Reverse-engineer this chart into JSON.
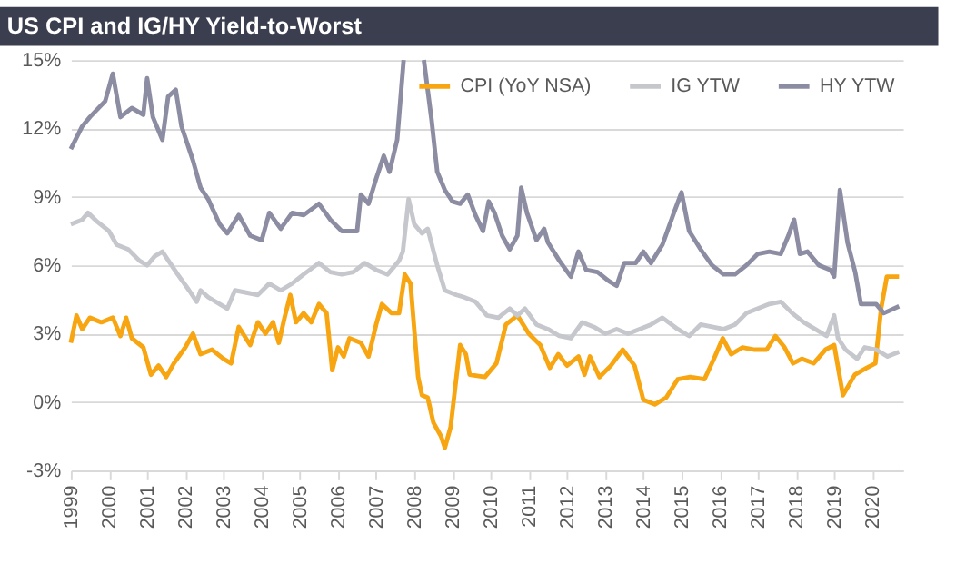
{
  "chart_data": {
    "type": "line",
    "title": "US CPI and IG/HY Yield-to-Worst",
    "xlim": [
      1999,
      2020.8
    ],
    "xticks": [
      1999,
      2000,
      2001,
      2002,
      2003,
      2004,
      2005,
      2006,
      2007,
      2008,
      2009,
      2010,
      2011,
      2012,
      2013,
      2014,
      2015,
      2016,
      2017,
      2018,
      2019,
      2020
    ],
    "ylim": [
      -3,
      15
    ],
    "yticks": [
      {
        "value": -3,
        "label": "-3%"
      },
      {
        "value": 0,
        "label": "0%"
      },
      {
        "value": 3,
        "label": "3%"
      },
      {
        "value": 6,
        "label": "6%"
      },
      {
        "value": 9,
        "label": "9%"
      },
      {
        "value": 12,
        "label": "12%"
      },
      {
        "value": 15,
        "label": "15%"
      }
    ],
    "grid": "y",
    "legend": "top right",
    "line_style": "solid",
    "marker": "none",
    "series": [
      {
        "name": "CPI (YoY NSA)",
        "color": "#f7a511",
        "x": [
          1999.0,
          1999.15,
          1999.3,
          1999.5,
          1999.8,
          2000.1,
          2000.3,
          2000.45,
          2000.6,
          2000.9,
          2001.1,
          2001.3,
          2001.5,
          2001.7,
          2002.0,
          2002.2,
          2002.4,
          2002.7,
          2003.0,
          2003.2,
          2003.4,
          2003.7,
          2003.9,
          2004.1,
          2004.3,
          2004.45,
          2004.6,
          2004.75,
          2004.9,
          2005.1,
          2005.3,
          2005.5,
          2005.7,
          2005.85,
          2006.0,
          2006.15,
          2006.3,
          2006.6,
          2006.8,
          2007.0,
          2007.15,
          2007.4,
          2007.6,
          2007.75,
          2007.9,
          2008.1,
          2008.2,
          2008.35,
          2008.5,
          2008.7,
          2008.8,
          2008.95,
          2009.2,
          2009.35,
          2009.45,
          2009.85,
          2010.15,
          2010.4,
          2010.7,
          2011.0,
          2011.3,
          2011.55,
          2011.77,
          2012.0,
          2012.3,
          2012.46,
          2012.6,
          2012.85,
          2013.15,
          2013.46,
          2013.77,
          2014.0,
          2014.3,
          2014.6,
          2014.9,
          2015.23,
          2015.6,
          2015.85,
          2016.08,
          2016.3,
          2016.6,
          2016.92,
          2017.23,
          2017.46,
          2017.7,
          2017.92,
          2018.15,
          2018.46,
          2018.77,
          2019.0,
          2019.23,
          2019.54,
          2019.85,
          2020.08,
          2020.23,
          2020.38,
          2020.7
        ],
        "values": [
          2.6,
          3.8,
          3.2,
          3.7,
          3.5,
          3.7,
          2.9,
          3.7,
          2.8,
          2.4,
          1.2,
          1.6,
          1.1,
          1.7,
          2.4,
          3.0,
          2.1,
          2.3,
          1.9,
          1.7,
          3.3,
          2.5,
          3.5,
          3.0,
          3.5,
          2.6,
          3.7,
          4.7,
          3.5,
          3.9,
          3.5,
          4.3,
          3.9,
          1.4,
          2.4,
          2.0,
          2.8,
          2.6,
          2.0,
          3.4,
          4.3,
          3.9,
          3.9,
          5.6,
          5.2,
          1.1,
          0.3,
          0.2,
          -0.9,
          -1.5,
          -2.0,
          -1.1,
          2.5,
          2.1,
          1.2,
          1.1,
          1.7,
          3.4,
          3.8,
          3.0,
          2.5,
          1.5,
          2.1,
          1.6,
          2.0,
          1.2,
          2.0,
          1.1,
          1.6,
          2.3,
          1.6,
          0.1,
          -0.1,
          0.2,
          1.0,
          1.1,
          1.0,
          1.9,
          2.8,
          2.1,
          2.4,
          2.3,
          2.3,
          2.9,
          2.4,
          1.7,
          1.9,
          1.7,
          2.3,
          2.5,
          0.3,
          1.2,
          1.5,
          1.7,
          4.1,
          5.5,
          5.5
        ]
      },
      {
        "name": "IG YTW",
        "color": "#c5c7cc",
        "x": [
          1999.0,
          1999.3,
          1999.45,
          1999.7,
          2000.0,
          2000.2,
          2000.5,
          2000.8,
          2001.0,
          2001.2,
          2001.4,
          2001.6,
          2001.8,
          2002.1,
          2002.3,
          2002.4,
          2002.6,
          2002.9,
          2003.1,
          2003.3,
          2003.6,
          2003.9,
          2004.2,
          2004.5,
          2004.8,
          2005.1,
          2005.5,
          2005.8,
          2006.1,
          2006.4,
          2006.7,
          2007.0,
          2007.3,
          2007.6,
          2007.7,
          2007.85,
          2008.0,
          2008.2,
          2008.35,
          2008.6,
          2008.8,
          2009.1,
          2009.3,
          2009.6,
          2009.9,
          2010.2,
          2010.5,
          2010.7,
          2010.9,
          2011.2,
          2011.5,
          2011.8,
          2012.1,
          2012.4,
          2012.7,
          2013.0,
          2013.3,
          2013.6,
          2013.9,
          2014.2,
          2014.5,
          2014.9,
          2015.2,
          2015.5,
          2015.8,
          2016.1,
          2016.4,
          2016.7,
          2017.0,
          2017.3,
          2017.6,
          2017.9,
          2018.2,
          2018.5,
          2018.8,
          2019.0,
          2019.1,
          2019.3,
          2019.6,
          2019.8,
          2020.1,
          2020.4,
          2020.7
        ],
        "values": [
          7.8,
          8.0,
          8.3,
          7.9,
          7.5,
          6.9,
          6.7,
          6.2,
          6.0,
          6.4,
          6.6,
          6.1,
          5.6,
          4.9,
          4.4,
          4.9,
          4.6,
          4.3,
          4.1,
          4.9,
          4.8,
          4.7,
          5.2,
          4.9,
          5.2,
          5.6,
          6.1,
          5.7,
          5.6,
          5.7,
          6.1,
          5.8,
          5.6,
          6.2,
          6.6,
          8.9,
          7.8,
          7.4,
          7.6,
          6.0,
          4.9,
          4.7,
          4.6,
          4.4,
          3.8,
          3.7,
          4.1,
          3.8,
          4.1,
          3.4,
          3.2,
          2.9,
          2.8,
          3.5,
          3.3,
          3.0,
          3.2,
          3.0,
          3.2,
          3.4,
          3.7,
          3.2,
          2.9,
          3.4,
          3.3,
          3.2,
          3.4,
          3.9,
          4.1,
          4.3,
          4.4,
          3.9,
          3.5,
          3.2,
          2.9,
          3.8,
          2.8,
          2.3,
          1.9,
          2.4,
          2.3,
          2.0,
          2.2
        ]
      },
      {
        "name": "HY YTW",
        "color": "#8c8ca3",
        "x": [
          1999.0,
          1999.3,
          1999.5,
          1999.9,
          2000.1,
          2000.3,
          2000.6,
          2000.9,
          2001.0,
          2001.15,
          2001.4,
          2001.55,
          2001.75,
          2001.9,
          2002.2,
          2002.4,
          2002.6,
          2002.9,
          2003.1,
          2003.4,
          2003.7,
          2004.0,
          2004.2,
          2004.5,
          2004.8,
          2005.1,
          2005.5,
          2005.8,
          2006.1,
          2006.5,
          2006.6,
          2006.8,
          2007.0,
          2007.2,
          2007.35,
          2007.55,
          2007.72,
          2008.0,
          2008.25,
          2008.45,
          2008.6,
          2008.8,
          2009.0,
          2009.2,
          2009.4,
          2009.6,
          2009.8,
          2009.95,
          2010.1,
          2010.3,
          2010.5,
          2010.7,
          2010.8,
          2010.95,
          2011.2,
          2011.4,
          2011.5,
          2011.8,
          2012.1,
          2012.3,
          2012.5,
          2012.8,
          2013.1,
          2013.3,
          2013.5,
          2013.8,
          2014.0,
          2014.2,
          2014.5,
          2014.8,
          2015.0,
          2015.2,
          2015.5,
          2015.8,
          2016.1,
          2016.4,
          2016.7,
          2017.0,
          2017.3,
          2017.6,
          2017.8,
          2017.95,
          2018.1,
          2018.3,
          2018.6,
          2018.9,
          2019.0,
          2019.15,
          2019.35,
          2019.55,
          2019.7,
          2020.1,
          2020.3,
          2020.7
        ],
        "values": [
          11.1,
          12.1,
          12.5,
          13.2,
          14.4,
          12.5,
          12.9,
          12.6,
          14.2,
          12.5,
          11.5,
          13.4,
          13.7,
          12.1,
          10.6,
          9.4,
          8.9,
          7.8,
          7.4,
          8.2,
          7.3,
          7.1,
          8.3,
          7.6,
          8.3,
          8.2,
          8.7,
          8.0,
          7.5,
          7.5,
          9.1,
          8.7,
          9.8,
          10.8,
          10.1,
          11.5,
          15,
          null,
          15,
          12.4,
          10.1,
          9.3,
          8.8,
          8.7,
          9.1,
          8.2,
          7.5,
          8.8,
          8.3,
          7.3,
          6.7,
          7.3,
          9.4,
          8.3,
          7.1,
          7.6,
          7.0,
          6.2,
          5.5,
          6.6,
          5.8,
          5.7,
          5.3,
          5.1,
          6.1,
          6.1,
          6.6,
          6.1,
          6.9,
          8.3,
          9.2,
          7.5,
          6.7,
          6.0,
          5.6,
          5.6,
          6.0,
          6.5,
          6.6,
          6.5,
          7.3,
          8.0,
          6.5,
          6.6,
          6.0,
          5.8,
          5.5,
          9.3,
          7.0,
          5.7,
          4.3,
          4.3,
          3.9,
          4.2
        ]
      }
    ]
  }
}
